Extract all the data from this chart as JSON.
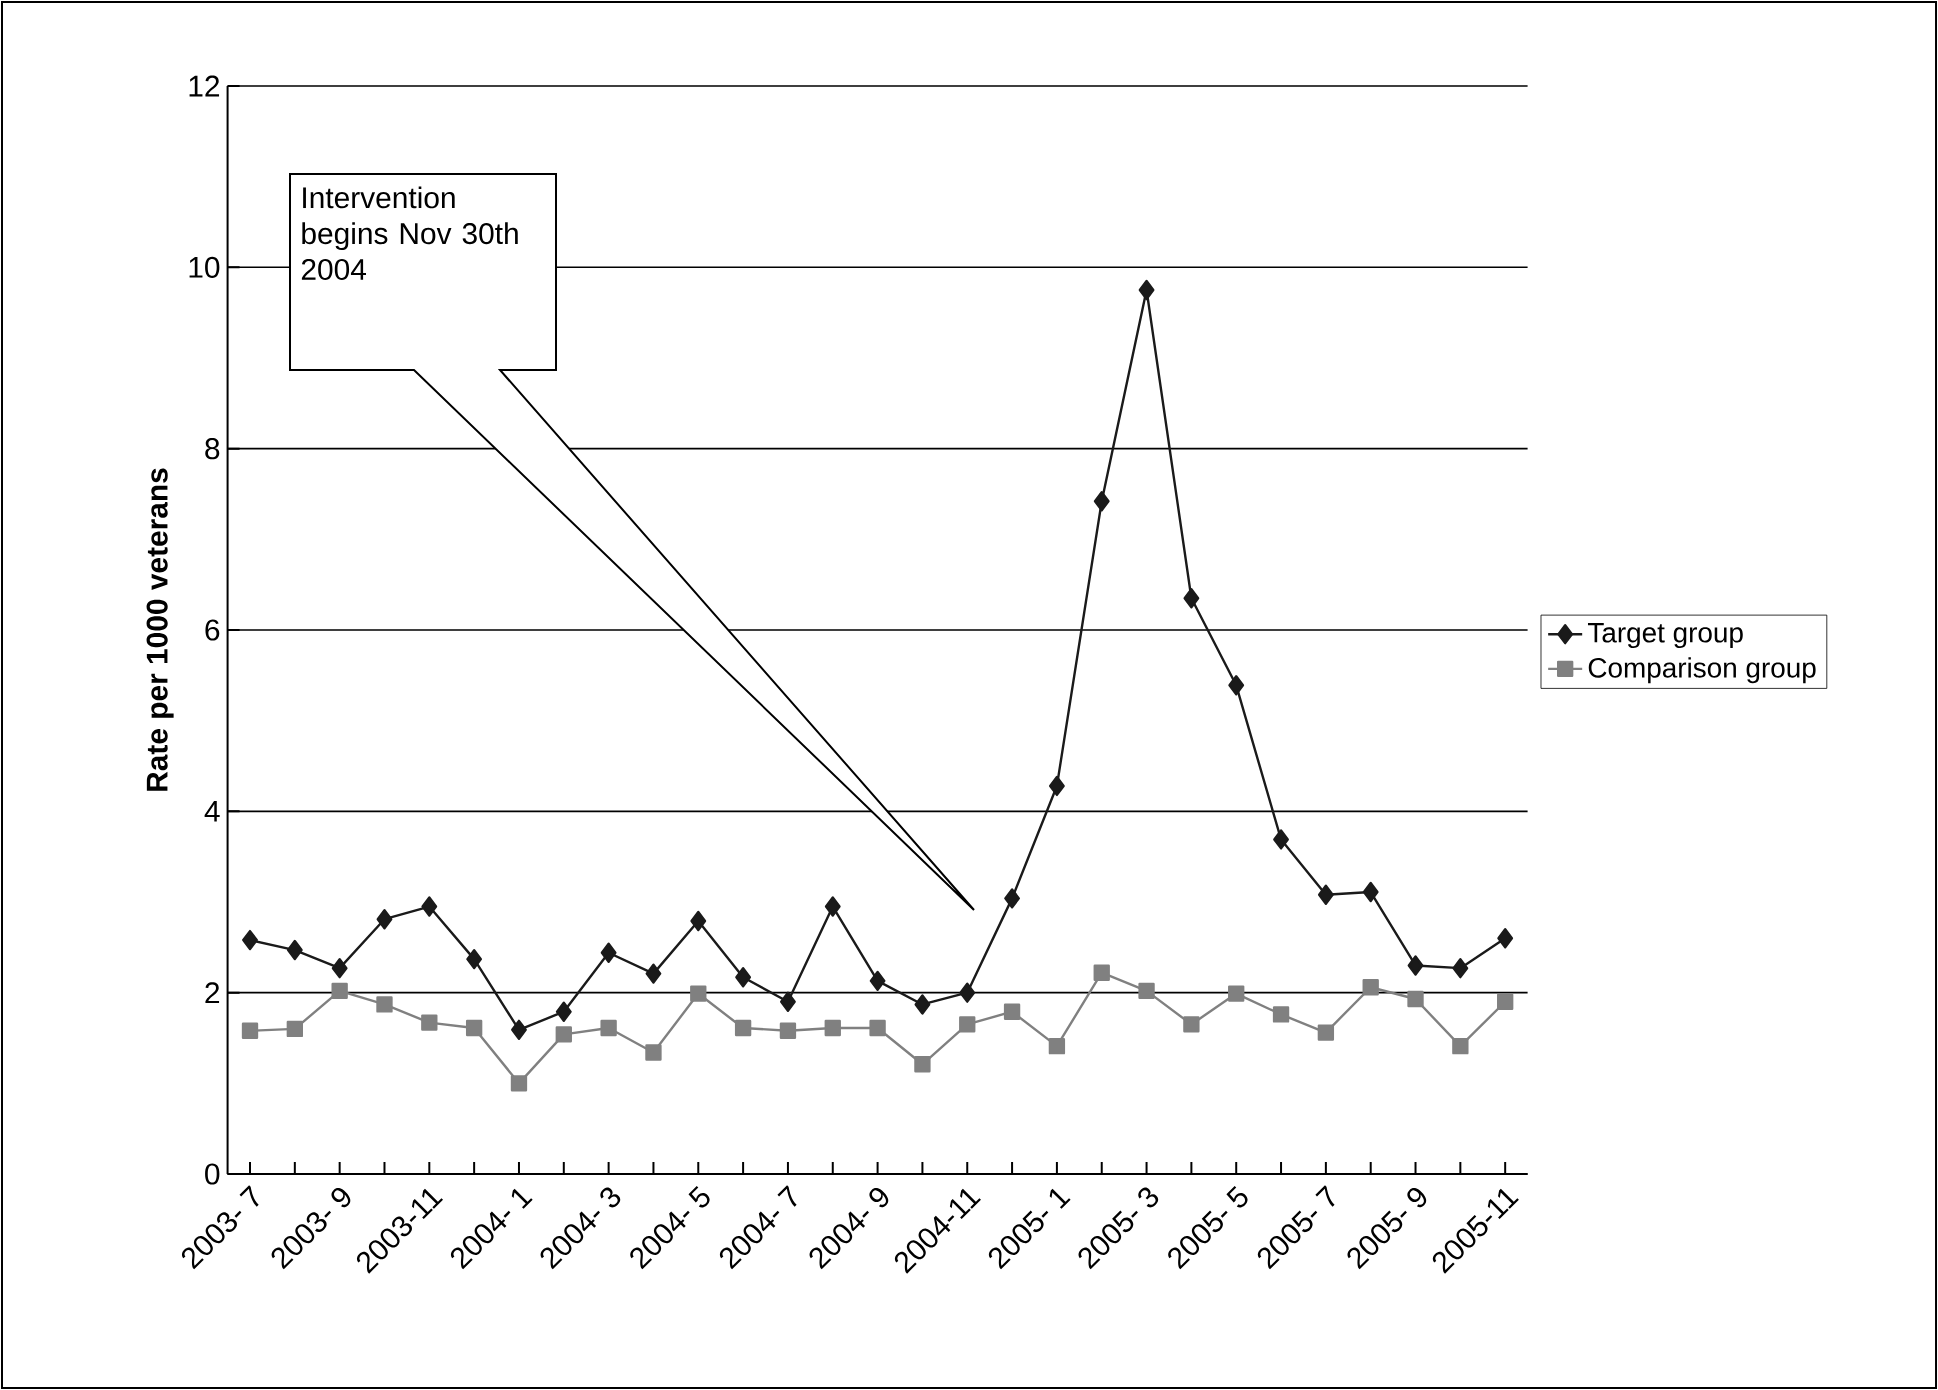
{
  "chart_data": {
    "type": "line",
    "ylabel": "Rate per 1000 veterans",
    "categories": [
      "2003- 7",
      null,
      "2003- 9",
      null,
      "2003-11",
      null,
      "2004- 1",
      null,
      "2004- 3",
      null,
      "2004- 5",
      null,
      "2004- 7",
      null,
      "2004- 9",
      null,
      "2004-11",
      null,
      "2005- 1",
      null,
      "2005- 3",
      null,
      "2005- 5",
      null,
      "2005- 7",
      null,
      "2005- 9",
      null,
      "2005-11"
    ],
    "series": [
      {
        "name": "Target group",
        "color": "#1a1a1a",
        "marker": "diamond",
        "values": [
          2.58,
          2.47,
          2.27,
          2.81,
          2.95,
          2.37,
          1.59,
          1.79,
          2.44,
          2.21,
          2.79,
          2.17,
          1.9,
          2.95,
          2.13,
          1.87,
          2.0,
          3.04,
          4.28,
          7.42,
          9.75,
          6.35,
          5.39,
          3.69,
          3.08,
          3.11,
          2.3,
          2.27,
          2.6
        ]
      },
      {
        "name": "Comparison group",
        "color": "#808080",
        "marker": "square",
        "values": [
          1.58,
          1.6,
          2.02,
          1.87,
          1.67,
          1.61,
          1.0,
          1.54,
          1.61,
          1.34,
          1.99,
          1.61,
          1.58,
          1.61,
          1.61,
          1.21,
          1.65,
          1.79,
          1.41,
          2.22,
          2.02,
          1.65,
          1.99,
          1.76,
          1.56,
          2.06,
          1.93,
          1.41,
          1.9
        ]
      }
    ],
    "ylim": [
      0,
      12
    ],
    "yticks": [
      0,
      2,
      4,
      6,
      8,
      10,
      12
    ],
    "grid": "y",
    "legend": "right",
    "line_style": "solid",
    "annotations": [
      "Intervention begins Nov 30th 2004"
    ]
  }
}
